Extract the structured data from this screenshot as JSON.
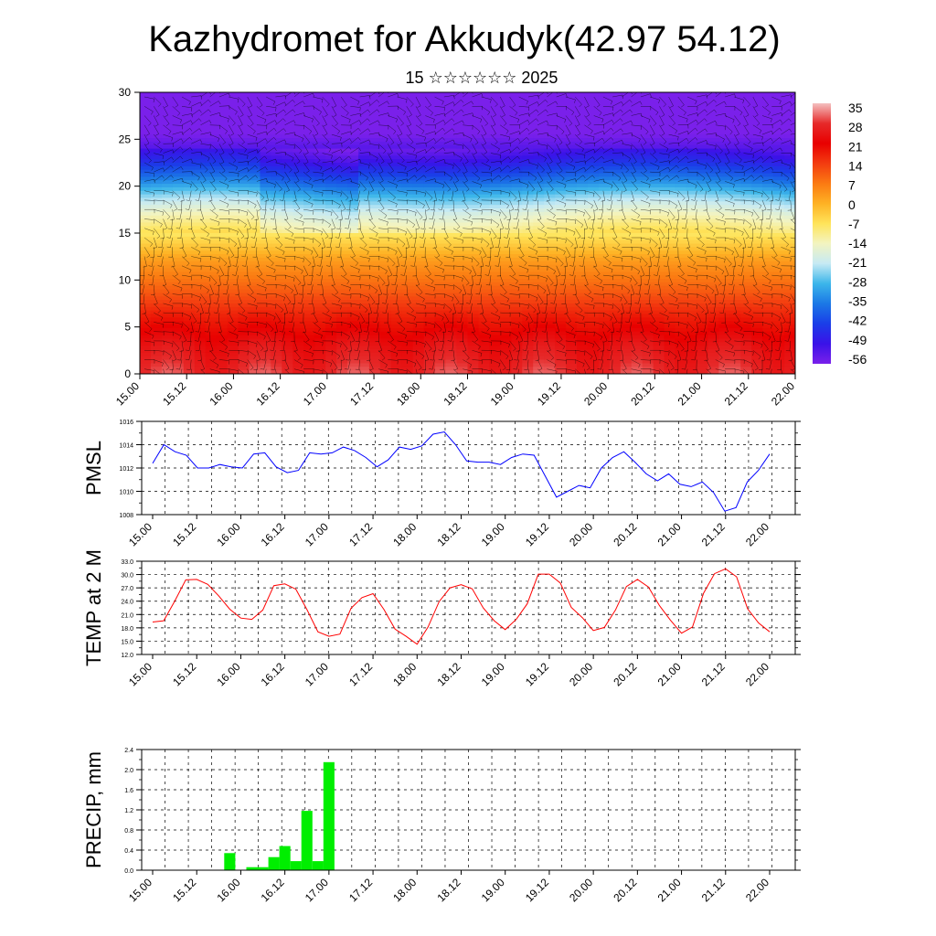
{
  "header": {
    "title": "Kazhydromet for Akkudyk(42.97 54.12)",
    "subtitle": "15 ☆☆☆☆☆☆ 2025"
  },
  "chart_data": [
    {
      "type": "heatmap",
      "name": "cross-section",
      "description_of_fill": "temperature-like field vs model level with wind barbs overlaid",
      "xlabels": [
        "15.00",
        "15.12",
        "16.00",
        "16.12",
        "17.00",
        "17.12",
        "18.00",
        "18.12",
        "19.00",
        "19.12",
        "20.00",
        "20.12",
        "21.00",
        "21.12",
        "22.00"
      ],
      "ylim": [
        0,
        30
      ],
      "yticks": [
        0,
        5,
        10,
        15,
        20,
        25,
        30
      ],
      "value_profile": {
        "levels": [
          0,
          3,
          6,
          9,
          12,
          15,
          17,
          19,
          21,
          22.5,
          24,
          25.5,
          27,
          30
        ],
        "values": [
          28,
          24,
          18,
          10,
          3,
          -8,
          -16,
          -26,
          -38,
          -46,
          -52,
          -56,
          -58,
          -60
        ]
      },
      "colorbar": {
        "labels": [
          "35",
          "28",
          "21",
          "14",
          "7",
          "0",
          "-7",
          "-14",
          "-21",
          "-28",
          "-35",
          "-42",
          "-49",
          "-56"
        ],
        "colors": [
          "#f4c0c0",
          "#e62a2a",
          "#e80000",
          "#f33c10",
          "#fb7a12",
          "#feb224",
          "#ffe45a",
          "#f3f4c0",
          "#c6eaf4",
          "#3cb6ea",
          "#1b78e6",
          "#1a3ee8",
          "#3a12e8",
          "#7a20ea"
        ]
      },
      "grid": false
    },
    {
      "type": "line",
      "name": "PMSL",
      "ylabel": "PMSL",
      "ylim": [
        1008,
        1016
      ],
      "yticks": [
        "1008",
        "1010",
        "1012",
        "1014",
        "1016"
      ],
      "xlabels": [
        "15.00",
        "15.12",
        "16.00",
        "16.12",
        "17.00",
        "17.12",
        "18.00",
        "18.12",
        "19.00",
        "19.12",
        "20.00",
        "20.12",
        "21.00",
        "21.12",
        "22.00"
      ],
      "color": "#0000ff",
      "values": [
        1012.4,
        1014.0,
        1013.4,
        1013.1,
        1012.0,
        1012.0,
        1012.3,
        1012.1,
        1012.0,
        1013.2,
        1013.3,
        1012.1,
        1011.6,
        1011.8,
        1013.3,
        1013.2,
        1013.3,
        1013.8,
        1013.5,
        1012.9,
        1012.1,
        1012.7,
        1013.8,
        1013.6,
        1013.9,
        1014.9,
        1015.1,
        1014.0,
        1012.6,
        1012.5,
        1012.5,
        1012.3,
        1012.9,
        1013.2,
        1013.1,
        1011.3,
        1009.5,
        1010.0,
        1010.5,
        1010.3,
        1012.0,
        1012.9,
        1013.4,
        1012.5,
        1011.5,
        1010.9,
        1011.5,
        1010.6,
        1010.4,
        1010.8,
        1009.9,
        1008.3,
        1008.6,
        1010.8,
        1011.8,
        1013.2
      ],
      "grid": true
    },
    {
      "type": "line",
      "name": "TEMP",
      "ylabel": "TEMP at 2 M",
      "ylim": [
        12.0,
        33.0
      ],
      "yticks": [
        "12.0",
        "15.0",
        "18.0",
        "21.0",
        "24.0",
        "27.0",
        "30.0",
        "33.0"
      ],
      "xlabels": [
        "15.00",
        "15.12",
        "16.00",
        "16.12",
        "17.00",
        "17.12",
        "18.00",
        "18.12",
        "19.00",
        "19.12",
        "20.00",
        "20.12",
        "21.00",
        "21.12",
        "22.00"
      ],
      "color": "#ff0000",
      "values": [
        19.3,
        19.6,
        24.0,
        28.8,
        28.9,
        27.8,
        25.2,
        22.2,
        20.2,
        19.9,
        22.0,
        27.5,
        27.9,
        26.7,
        22.1,
        17.1,
        16.1,
        16.6,
        22.4,
        24.8,
        25.7,
        22.1,
        17.7,
        16.1,
        14.3,
        18.2,
        23.9,
        27.0,
        27.7,
        26.8,
        22.5,
        19.6,
        17.6,
        19.9,
        23.4,
        30.1,
        30.1,
        28.1,
        22.6,
        20.3,
        17.4,
        18.1,
        22.0,
        27.3,
        28.9,
        27.2,
        23.0,
        19.7,
        16.8,
        18.2,
        25.8,
        30.2,
        31.3,
        29.5,
        22.3,
        19.1,
        17.1
      ],
      "grid": true
    },
    {
      "type": "bar",
      "name": "PRECIP",
      "ylabel": "PRECIP, mm",
      "ylim": [
        0.0,
        2.4
      ],
      "yticks": [
        "0.0",
        "0.4",
        "0.8",
        "1.2",
        "1.6",
        "2.0",
        "2.4"
      ],
      "xlabels": [
        "15.00",
        "15.12",
        "16.00",
        "16.12",
        "17.00",
        "17.12",
        "18.00",
        "18.12",
        "19.00",
        "19.12",
        "20.00",
        "20.12",
        "21.00",
        "21.12",
        "22.00"
      ],
      "color": "#00ee00",
      "values": [
        0,
        0,
        0,
        0,
        0,
        0,
        0.01,
        0.34,
        0,
        0.06,
        0.06,
        0.26,
        0.48,
        0.18,
        1.18,
        0.18,
        2.15,
        0,
        0,
        0,
        0,
        0,
        0,
        0,
        0,
        0,
        0,
        0,
        0,
        0,
        0,
        0,
        0,
        0,
        0,
        0,
        0,
        0,
        0,
        0,
        0,
        0,
        0,
        0,
        0,
        0,
        0,
        0,
        0,
        0,
        0,
        0,
        0,
        0,
        0,
        0,
        0
      ],
      "grid": true
    }
  ]
}
